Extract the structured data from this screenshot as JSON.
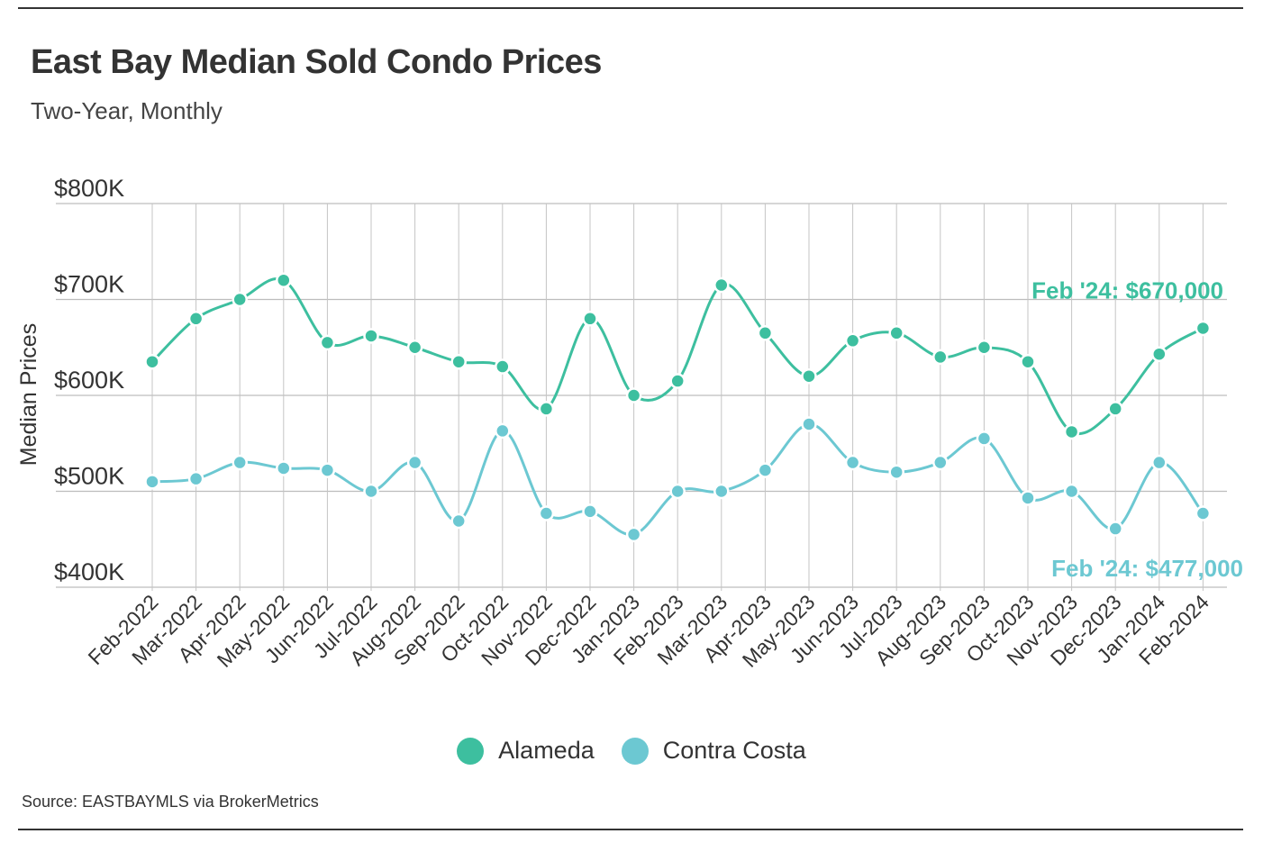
{
  "header": {
    "title": "East Bay Median Sold Condo Prices",
    "subtitle": "Two-Year, Monthly"
  },
  "footer": {
    "source": "Source:  EASTBAYMLS via BrokerMetrics"
  },
  "chart_data": {
    "type": "line",
    "title": "East Bay Median Sold Condo Prices",
    "subtitle": "Two-Year, Monthly",
    "xlabel": "",
    "ylabel": "Median Prices",
    "ylim": [
      400000,
      800000
    ],
    "yticks": [
      400000,
      500000,
      600000,
      700000,
      800000
    ],
    "ytick_labels": [
      "$400K",
      "$500K",
      "$600K",
      "$700K",
      "$800K"
    ],
    "grid": true,
    "legend_position": "bottom",
    "categories": [
      "Feb-2022",
      "Mar-2022",
      "Apr-2022",
      "May-2022",
      "Jun-2022",
      "Jul-2022",
      "Aug-2022",
      "Sep-2022",
      "Oct-2022",
      "Nov-2022",
      "Dec-2022",
      "Jan-2023",
      "Feb-2023",
      "Mar-2023",
      "Apr-2023",
      "May-2023",
      "Jun-2023",
      "Jul-2023",
      "Aug-2023",
      "Sep-2023",
      "Oct-2023",
      "Nov-2023",
      "Dec-2023",
      "Jan-2024",
      "Feb-2024"
    ],
    "series": [
      {
        "name": "Alameda",
        "color": "#3dbf9f",
        "values": [
          635000,
          680000,
          700000,
          720000,
          655000,
          662000,
          650000,
          635000,
          630000,
          586000,
          680000,
          600000,
          615000,
          715000,
          665000,
          620000,
          657000,
          665000,
          640000,
          650000,
          635000,
          562000,
          586000,
          643000,
          670000
        ]
      },
      {
        "name": "Contra Costa",
        "color": "#6cc8d2",
        "values": [
          510000,
          513000,
          530000,
          524000,
          522000,
          500000,
          530000,
          469000,
          563000,
          477000,
          479000,
          455000,
          500000,
          500000,
          522000,
          570000,
          530000,
          520000,
          530000,
          555000,
          493000,
          500000,
          461000,
          530000,
          477000
        ]
      }
    ],
    "annotations": [
      {
        "series": "Alameda",
        "text": "Feb '24: $670,000"
      },
      {
        "series": "Contra Costa",
        "text": "Feb '24: $477,000"
      }
    ]
  }
}
